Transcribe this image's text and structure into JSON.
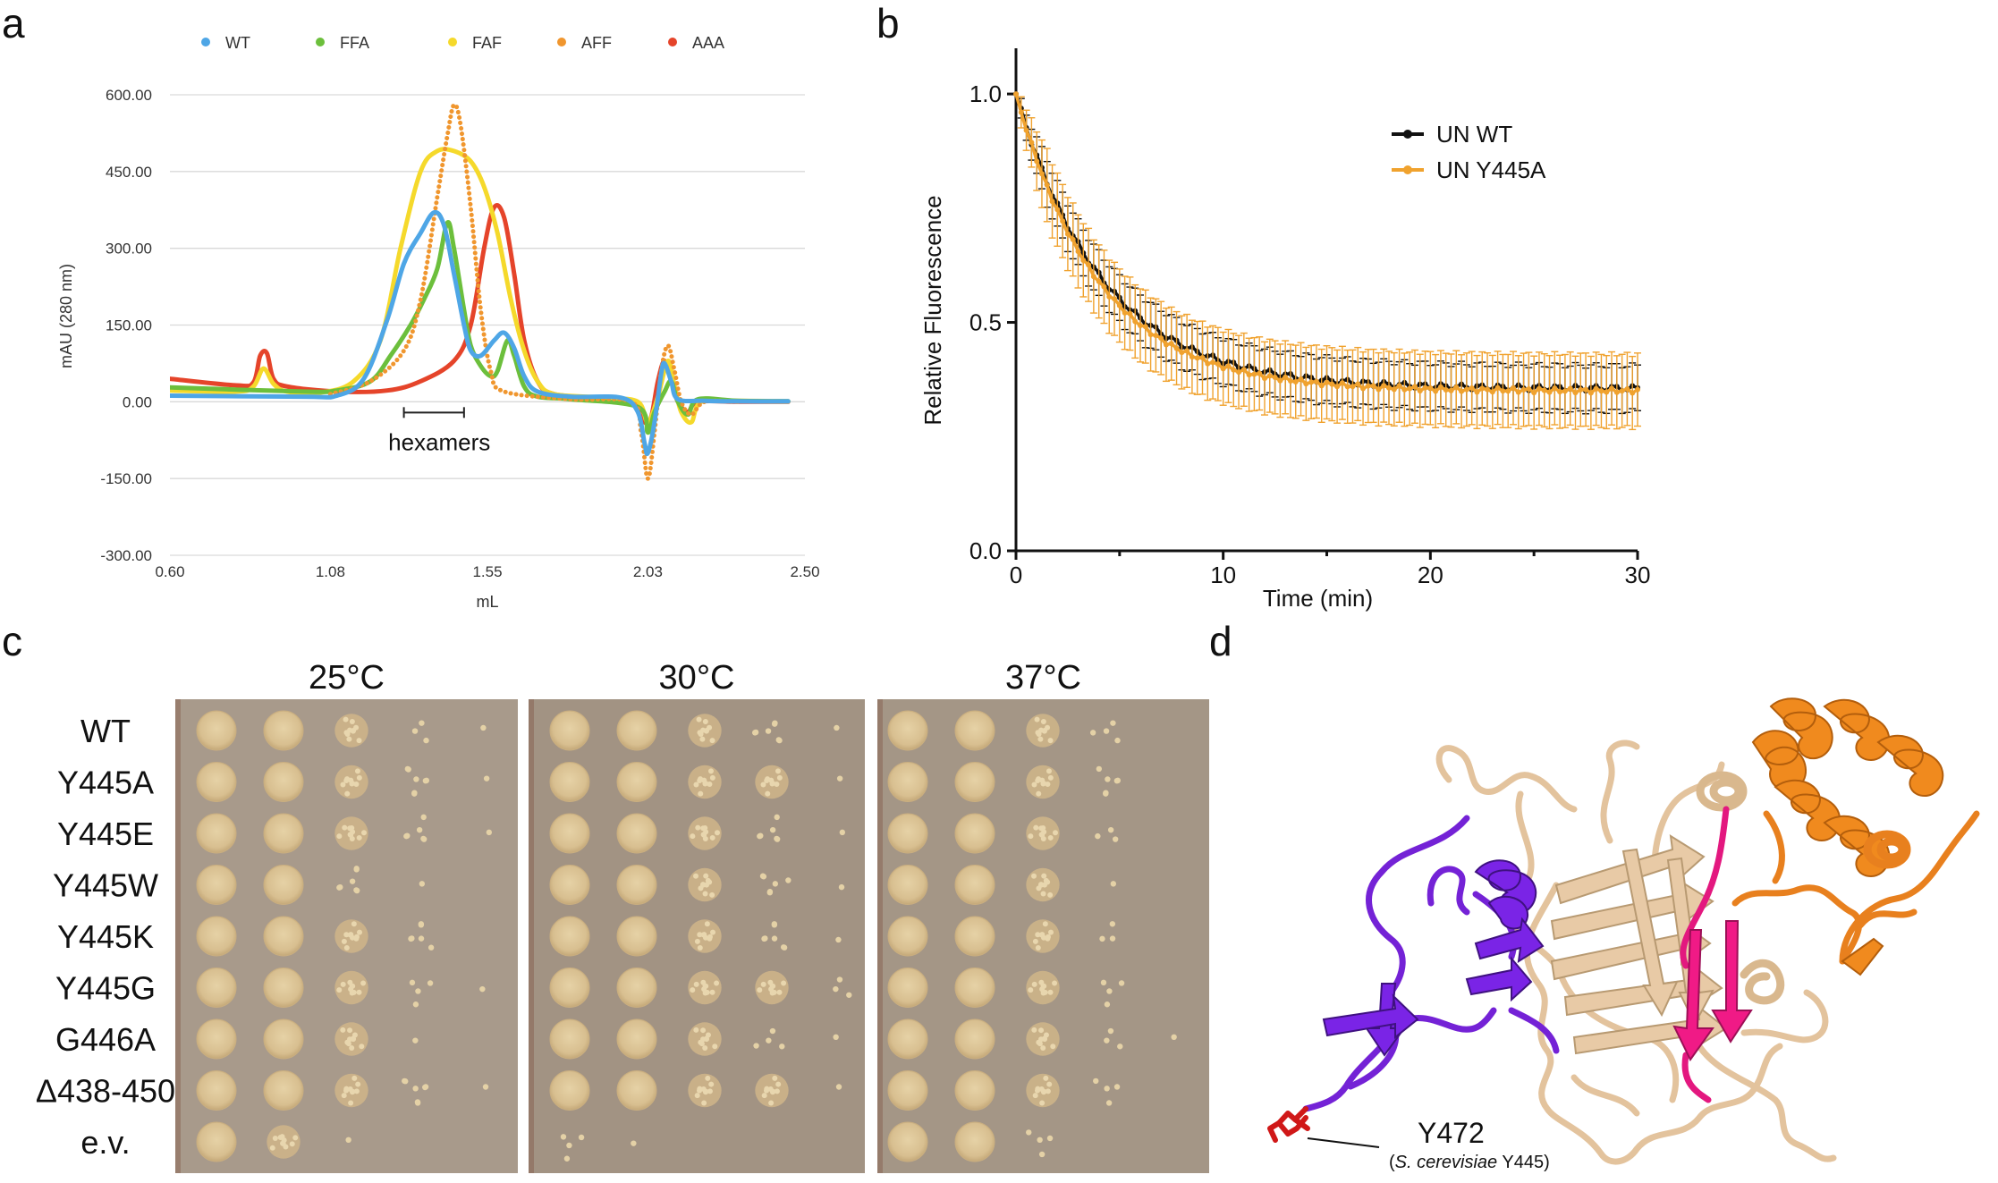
{
  "panel_labels": {
    "a": "a",
    "b": "b",
    "c": "c",
    "d": "d"
  },
  "chart_data": [
    {
      "type": "line",
      "panel": "a",
      "title": "",
      "xlabel": "mL",
      "ylabel": "mAU (280 nm)",
      "xlim": [
        0.6,
        2.5
      ],
      "ylim": [
        -300,
        600
      ],
      "x_ticks": [
        0.6,
        1.08,
        1.55,
        2.03,
        2.5
      ],
      "x_tick_labels": [
        "0.60",
        "1.08",
        "1.55",
        "2.03",
        "2.50"
      ],
      "y_ticks": [
        600,
        450,
        300,
        150,
        0,
        -150,
        -300
      ],
      "y_tick_labels": [
        "600.00",
        "450.00",
        "300.00",
        "150.00",
        "0.00",
        "-150.00",
        "-300.00"
      ],
      "annotation": {
        "label": "hexamers",
        "x_range": [
          1.3,
          1.48
        ]
      },
      "legend": [
        "WT",
        "FFA",
        "FAF",
        "AFF",
        "AAA"
      ],
      "series": [
        {
          "name": "WT",
          "color": "#4ea6e6",
          "style": "solid",
          "points": [
            [
              0.6,
              12
            ],
            [
              1.0,
              10
            ],
            [
              1.1,
              12
            ],
            [
              1.18,
              45
            ],
            [
              1.25,
              160
            ],
            [
              1.3,
              270
            ],
            [
              1.35,
              330
            ],
            [
              1.39,
              370
            ],
            [
              1.42,
              345
            ],
            [
              1.45,
              250
            ],
            [
              1.48,
              150
            ],
            [
              1.5,
              100
            ],
            [
              1.53,
              90
            ],
            [
              1.57,
              120
            ],
            [
              1.6,
              135
            ],
            [
              1.63,
              105
            ],
            [
              1.66,
              50
            ],
            [
              1.7,
              20
            ],
            [
              1.8,
              10
            ],
            [
              1.95,
              8
            ],
            [
              2.0,
              -20
            ],
            [
              2.02,
              -80
            ],
            [
              2.03,
              -100
            ],
            [
              2.05,
              -40
            ],
            [
              2.07,
              55
            ],
            [
              2.08,
              75
            ],
            [
              2.1,
              40
            ],
            [
              2.12,
              5
            ],
            [
              2.2,
              2
            ],
            [
              2.3,
              1
            ],
            [
              2.45,
              1
            ]
          ]
        },
        {
          "name": "FFA",
          "color": "#6cbf3c",
          "style": "solid",
          "points": [
            [
              0.6,
              28
            ],
            [
              1.0,
              20
            ],
            [
              1.1,
              22
            ],
            [
              1.2,
              40
            ],
            [
              1.26,
              90
            ],
            [
              1.32,
              150
            ],
            [
              1.36,
              200
            ],
            [
              1.4,
              260
            ],
            [
              1.43,
              350
            ],
            [
              1.45,
              300
            ],
            [
              1.48,
              180
            ],
            [
              1.5,
              110
            ],
            [
              1.53,
              70
            ],
            [
              1.56,
              50
            ],
            [
              1.58,
              60
            ],
            [
              1.61,
              120
            ],
            [
              1.63,
              90
            ],
            [
              1.66,
              30
            ],
            [
              1.7,
              10
            ],
            [
              1.8,
              5
            ],
            [
              2.0,
              -10
            ],
            [
              2.03,
              -60
            ],
            [
              2.05,
              -20
            ],
            [
              2.08,
              20
            ],
            [
              2.1,
              40
            ],
            [
              2.12,
              0
            ],
            [
              2.15,
              -25
            ],
            [
              2.18,
              5
            ],
            [
              2.3,
              2
            ],
            [
              2.45,
              1
            ]
          ]
        },
        {
          "name": "FAF",
          "color": "#f5d92b",
          "style": "solid",
          "points": [
            [
              0.6,
              22
            ],
            [
              0.8,
              20
            ],
            [
              0.85,
              30
            ],
            [
              0.88,
              65
            ],
            [
              0.91,
              35
            ],
            [
              0.95,
              20
            ],
            [
              1.05,
              18
            ],
            [
              1.15,
              40
            ],
            [
              1.23,
              120
            ],
            [
              1.29,
              300
            ],
            [
              1.35,
              450
            ],
            [
              1.4,
              490
            ],
            [
              1.45,
              490
            ],
            [
              1.5,
              470
            ],
            [
              1.54,
              420
            ],
            [
              1.58,
              330
            ],
            [
              1.62,
              200
            ],
            [
              1.66,
              100
            ],
            [
              1.7,
              40
            ],
            [
              1.75,
              15
            ],
            [
              1.9,
              8
            ],
            [
              2.0,
              0
            ],
            [
              2.03,
              -40
            ],
            [
              2.06,
              10
            ],
            [
              2.09,
              80
            ],
            [
              2.11,
              30
            ],
            [
              2.13,
              -20
            ],
            [
              2.16,
              -40
            ],
            [
              2.19,
              0
            ],
            [
              2.3,
              2
            ],
            [
              2.45,
              1
            ]
          ]
        },
        {
          "name": "AFF",
          "color": "#f0962e",
          "style": "dotted",
          "points": [
            [
              1.08,
              15
            ],
            [
              1.2,
              40
            ],
            [
              1.3,
              100
            ],
            [
              1.35,
              200
            ],
            [
              1.4,
              400
            ],
            [
              1.43,
              520
            ],
            [
              1.45,
              580
            ],
            [
              1.47,
              540
            ],
            [
              1.5,
              380
            ],
            [
              1.53,
              180
            ],
            [
              1.56,
              60
            ],
            [
              1.6,
              20
            ],
            [
              1.8,
              5
            ],
            [
              1.98,
              0
            ],
            [
              2.01,
              -60
            ],
            [
              2.03,
              -150
            ],
            [
              2.05,
              -60
            ],
            [
              2.07,
              60
            ],
            [
              2.09,
              110
            ],
            [
              2.11,
              60
            ],
            [
              2.13,
              0
            ],
            [
              2.16,
              -25
            ],
            [
              2.2,
              0
            ],
            [
              2.3,
              0
            ]
          ]
        },
        {
          "name": "AAA",
          "color": "#e5442a",
          "style": "solid",
          "points": [
            [
              0.6,
              45
            ],
            [
              0.8,
              32
            ],
            [
              0.85,
              38
            ],
            [
              0.87,
              90
            ],
            [
              0.89,
              95
            ],
            [
              0.91,
              45
            ],
            [
              0.95,
              30
            ],
            [
              1.1,
              20
            ],
            [
              1.25,
              22
            ],
            [
              1.35,
              40
            ],
            [
              1.45,
              80
            ],
            [
              1.5,
              150
            ],
            [
              1.54,
              300
            ],
            [
              1.57,
              380
            ],
            [
              1.6,
              360
            ],
            [
              1.63,
              250
            ],
            [
              1.66,
              120
            ],
            [
              1.7,
              40
            ],
            [
              1.75,
              15
            ],
            [
              1.9,
              5
            ],
            [
              2.0,
              -10
            ],
            [
              2.02,
              -40
            ],
            [
              2.04,
              -30
            ],
            [
              2.06,
              40
            ],
            [
              2.08,
              80
            ],
            [
              2.1,
              40
            ],
            [
              2.12,
              0
            ],
            [
              2.15,
              -20
            ],
            [
              2.18,
              0
            ],
            [
              2.3,
              0
            ],
            [
              2.45,
              0
            ]
          ]
        }
      ]
    },
    {
      "type": "line",
      "panel": "b",
      "title": "",
      "xlabel": "Time (min)",
      "ylabel": "Relative Fluorescence",
      "xlim": [
        0,
        30
      ],
      "ylim": [
        0,
        1.1
      ],
      "x_ticks": [
        0,
        10,
        20,
        30
      ],
      "x_tick_labels": [
        "0",
        "10",
        "20",
        "30"
      ],
      "y_ticks": [
        0,
        0.5,
        1.0
      ],
      "y_tick_labels": [
        "0.0",
        "0.5",
        "1.0"
      ],
      "legend": [
        "UN WT",
        "UN Y445A"
      ],
      "series": [
        {
          "name": "UN WT",
          "color": "#111111",
          "plateau": 0.355,
          "amplitude": 0.645,
          "tau": 4.2,
          "error": 0.05
        },
        {
          "name": "UN Y445A",
          "color": "#f0a22e",
          "plateau": 0.35,
          "amplitude": 0.65,
          "tau": 4.0,
          "error": 0.08
        }
      ]
    }
  ],
  "panel_c": {
    "temperatures": [
      "25°C",
      "30°C",
      "37°C"
    ],
    "strains": [
      "WT",
      "Y445A",
      "Y445E",
      "Y445W",
      "Y445K",
      "Y445G",
      "G446A",
      "Δ438-450",
      "e.v."
    ],
    "growth": [
      [
        [
          1,
          1,
          0.7,
          0.2,
          0.05
        ],
        [
          1,
          1,
          0.7,
          0.5,
          0.1
        ],
        [
          1,
          1,
          0.7,
          0.4,
          0.1
        ],
        [
          1,
          1,
          0.5,
          0.1,
          0.0
        ],
        [
          1,
          1,
          0.7,
          0.4,
          0.0
        ],
        [
          1,
          1,
          0.8,
          0.3,
          0.05
        ],
        [
          1,
          1,
          0.6,
          0.1,
          0.0
        ],
        [
          1,
          1,
          0.8,
          0.5,
          0.05
        ],
        [
          1,
          0.7,
          0.1,
          0.0,
          0.0
        ]
      ],
      [
        [
          1,
          1,
          0.8,
          0.5,
          0.1
        ],
        [
          1,
          1,
          0.8,
          0.6,
          0.1
        ],
        [
          1,
          1,
          0.8,
          0.4,
          0.05
        ],
        [
          1,
          1,
          0.7,
          0.4,
          0.1
        ],
        [
          1,
          1,
          0.8,
          0.5,
          0.05
        ],
        [
          1,
          1,
          0.8,
          0.6,
          0.2
        ],
        [
          1,
          1,
          0.7,
          0.3,
          0.1
        ],
        [
          1,
          1,
          0.8,
          0.6,
          0.1
        ],
        [
          0.3,
          0.1,
          0.0,
          0.0,
          0.0
        ]
      ],
      [
        [
          1,
          1,
          0.7,
          0.3,
          0.0
        ],
        [
          1,
          1,
          0.7,
          0.4,
          0.0
        ],
        [
          1,
          1,
          0.7,
          0.2,
          0.0
        ],
        [
          1,
          1,
          0.6,
          0.1,
          0.0
        ],
        [
          1,
          1,
          0.7,
          0.2,
          0.0
        ],
        [
          1,
          1,
          0.7,
          0.3,
          0.0
        ],
        [
          1,
          1,
          0.6,
          0.2,
          0.05
        ],
        [
          1,
          1,
          0.7,
          0.3,
          0.0
        ],
        [
          1,
          1,
          0.3,
          0.0,
          0.0
        ]
      ]
    ]
  },
  "panel_d": {
    "residue_label": "Y472",
    "species_label": "S. cerevisiae",
    "residue_suffix": " Y445)"
  }
}
